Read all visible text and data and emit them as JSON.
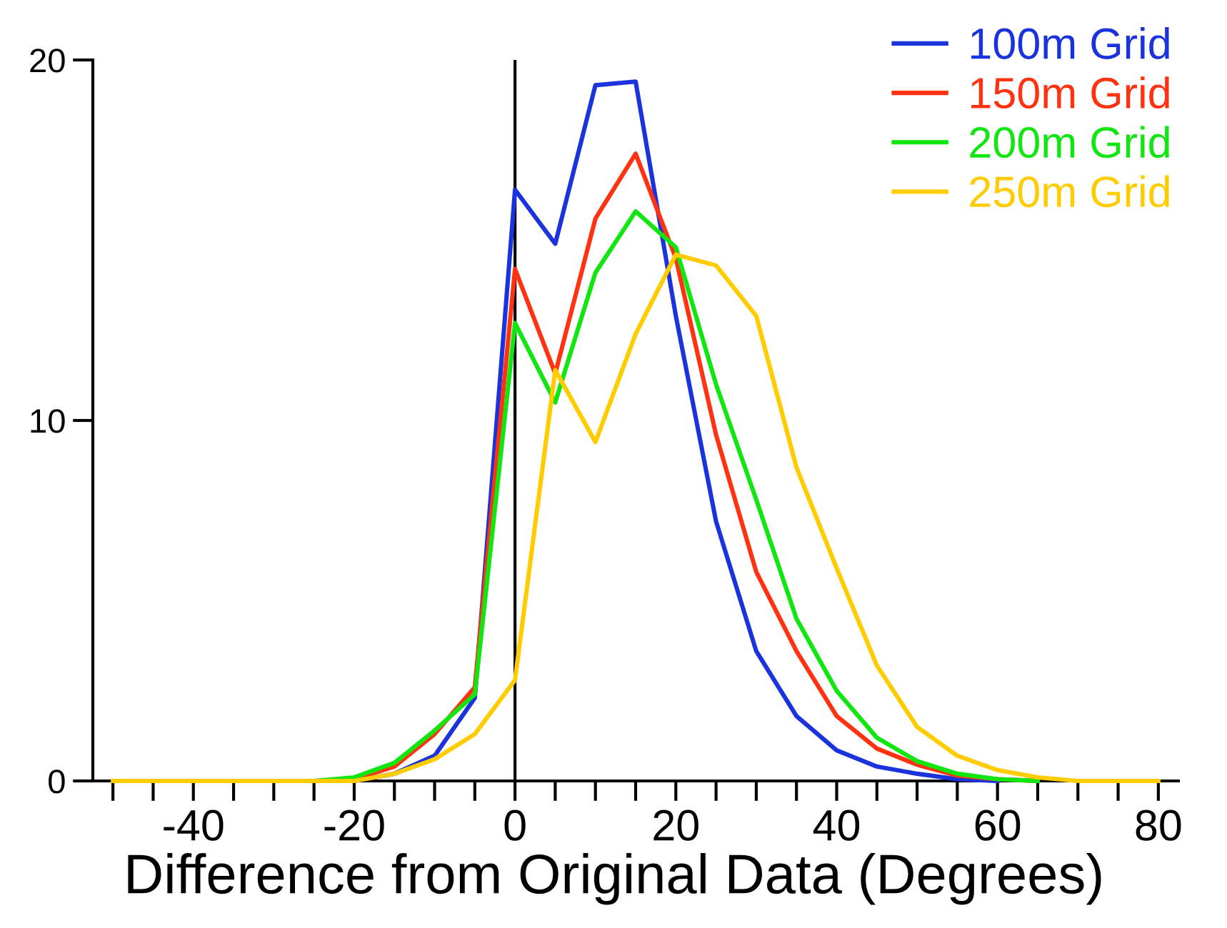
{
  "chart_data": {
    "type": "line",
    "xlabel": "Difference from Original Data (Degrees)",
    "x": [
      -50,
      -45,
      -40,
      -35,
      -30,
      -25,
      -20,
      -15,
      -10,
      -5,
      0,
      5,
      10,
      15,
      20,
      25,
      30,
      35,
      40,
      45,
      50,
      55,
      60,
      65,
      70,
      75,
      80
    ],
    "series": [
      {
        "name": "100m Grid",
        "color": "#1a33dd",
        "values": [
          null,
          null,
          null,
          null,
          null,
          null,
          0,
          0.2,
          0.7,
          2.3,
          16.4,
          14.9,
          19.3,
          19.4,
          12.9,
          7.2,
          3.6,
          1.8,
          0.85,
          0.4,
          0.2,
          0.05,
          0,
          null,
          null,
          null,
          null
        ]
      },
      {
        "name": "150m Grid",
        "color": "#ff3311",
        "values": [
          null,
          null,
          null,
          null,
          null,
          0,
          0.05,
          0.4,
          1.3,
          2.6,
          14.2,
          11.3,
          15.6,
          17.4,
          14.5,
          9.6,
          5.8,
          3.6,
          1.8,
          0.9,
          0.45,
          0.15,
          0.05,
          0,
          null,
          null,
          null
        ]
      },
      {
        "name": "200m Grid",
        "color": "#11e611",
        "values": [
          null,
          null,
          null,
          null,
          null,
          0,
          0.1,
          0.5,
          1.4,
          2.4,
          12.7,
          10.5,
          14.1,
          15.8,
          14.8,
          11.0,
          7.8,
          4.5,
          2.5,
          1.2,
          0.55,
          0.2,
          0.05,
          0,
          null,
          null,
          null
        ]
      },
      {
        "name": "250m Grid",
        "color": "#ffcc00",
        "values": [
          0,
          0,
          0,
          0,
          0,
          0,
          0,
          0.2,
          0.6,
          1.3,
          2.8,
          11.4,
          9.4,
          12.4,
          14.6,
          14.3,
          12.9,
          8.7,
          5.9,
          3.2,
          1.5,
          0.7,
          0.3,
          0.1,
          0,
          0,
          0
        ]
      }
    ],
    "xlim": [
      -52.5,
      82.5
    ],
    "xticks": [
      {
        "value": -50,
        "label": null
      },
      {
        "value": -45,
        "label": null
      },
      -40,
      {
        "value": -35,
        "label": null
      },
      {
        "value": -30,
        "label": null
      },
      {
        "value": -25,
        "label": null
      },
      -20,
      {
        "value": -15,
        "label": null
      },
      {
        "value": -10,
        "label": null
      },
      {
        "value": -5,
        "label": null
      },
      0,
      {
        "value": 5,
        "label": null
      },
      {
        "value": 10,
        "label": null
      },
      {
        "value": 15,
        "label": null
      },
      20,
      {
        "value": 25,
        "label": null
      },
      {
        "value": 30,
        "label": null
      },
      {
        "value": 35,
        "label": null
      },
      40,
      {
        "value": 45,
        "label": null
      },
      {
        "value": 50,
        "label": null
      },
      {
        "value": 55,
        "label": null
      },
      60,
      {
        "value": 65,
        "label": null
      },
      {
        "value": 70,
        "label": null
      },
      {
        "value": 75,
        "label": null
      },
      80
    ],
    "ylim": [
      0,
      20
    ],
    "yticks": [
      0,
      10,
      20
    ],
    "ref_lines": [
      {
        "axis": "x",
        "value": 0,
        "color": "#000000"
      }
    ],
    "grid": false,
    "legend": "top right",
    "marker": "none",
    "line_style": "solid"
  }
}
